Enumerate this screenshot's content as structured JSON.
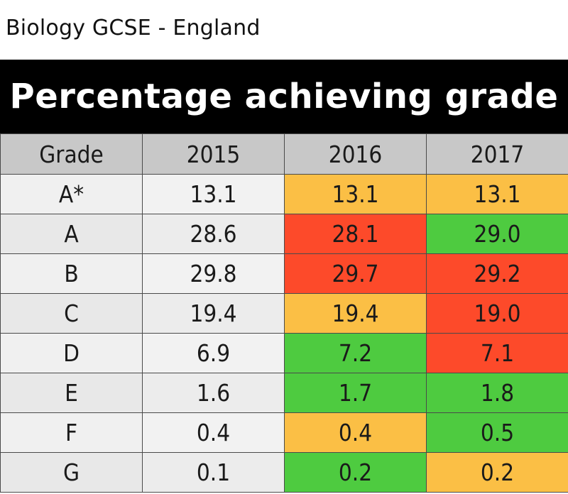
{
  "subtitle": "Biology GCSE - England",
  "title": "Percentage achieving grade",
  "colors": {
    "same": "#fbbf45",
    "down": "#fd4a2a",
    "up": "#4ecb40"
  },
  "chart_data": {
    "type": "table",
    "columns": [
      "Grade",
      "2015",
      "2016",
      "2017"
    ],
    "rows": [
      {
        "grade": "A*",
        "values": [
          "13.1",
          "13.1",
          "13.1"
        ],
        "status": [
          "",
          "same",
          "same"
        ]
      },
      {
        "grade": "A",
        "values": [
          "28.6",
          "28.1",
          "29.0"
        ],
        "status": [
          "",
          "down",
          "up"
        ]
      },
      {
        "grade": "B",
        "values": [
          "29.8",
          "29.7",
          "29.2"
        ],
        "status": [
          "",
          "down",
          "down"
        ]
      },
      {
        "grade": "C",
        "values": [
          "19.4",
          "19.4",
          "19.0"
        ],
        "status": [
          "",
          "same",
          "down"
        ]
      },
      {
        "grade": "D",
        "values": [
          "6.9",
          "7.2",
          "7.1"
        ],
        "status": [
          "",
          "up",
          "down"
        ]
      },
      {
        "grade": "E",
        "values": [
          "1.6",
          "1.7",
          "1.8"
        ],
        "status": [
          "",
          "up",
          "up"
        ]
      },
      {
        "grade": "F",
        "values": [
          "0.4",
          "0.4",
          "0.5"
        ],
        "status": [
          "",
          "same",
          "up"
        ]
      },
      {
        "grade": "G",
        "values": [
          "0.1",
          "0.2",
          "0.2"
        ],
        "status": [
          "",
          "up",
          "same"
        ]
      }
    ]
  }
}
